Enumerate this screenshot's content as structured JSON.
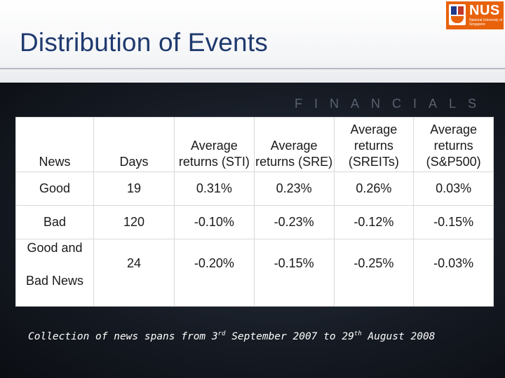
{
  "slide": {
    "title": "Distribution of Events",
    "watermark": "FINANCIALS",
    "logo": {
      "text": "NUS",
      "subtext": "National University of Singapore"
    }
  },
  "table": {
    "headers": [
      "News",
      "Days",
      "Average returns (STI)",
      "Average returns (SRE)",
      "Average returns (SREITs)",
      "Average returns (S&P500)"
    ],
    "rows": [
      {
        "news": "Good",
        "days": "19",
        "sti": "0.31%",
        "sre": "0.23%",
        "sreits": "0.26%",
        "sp500": "0.03%"
      },
      {
        "news": "Bad",
        "days": "120",
        "sti": "-0.10%",
        "sre": "-0.23%",
        "sreits": "-0.12%",
        "sp500": "-0.15%"
      },
      {
        "news_line1": "Good and",
        "news_line2": "Bad News",
        "days": "24",
        "sti": "-0.20%",
        "sre": "-0.15%",
        "sreits": "-0.25%",
        "sp500": "-0.03%"
      }
    ]
  },
  "footnote": {
    "part1": "Collection of news spans from 3",
    "sup1": "rd",
    "part2": " September 2007 to 29",
    "sup2": "th",
    "part3": " August 2008"
  },
  "colors": {
    "title": "#1f3a6e",
    "logo_bg": "#e8620b",
    "slide_bg": "#161b24"
  }
}
